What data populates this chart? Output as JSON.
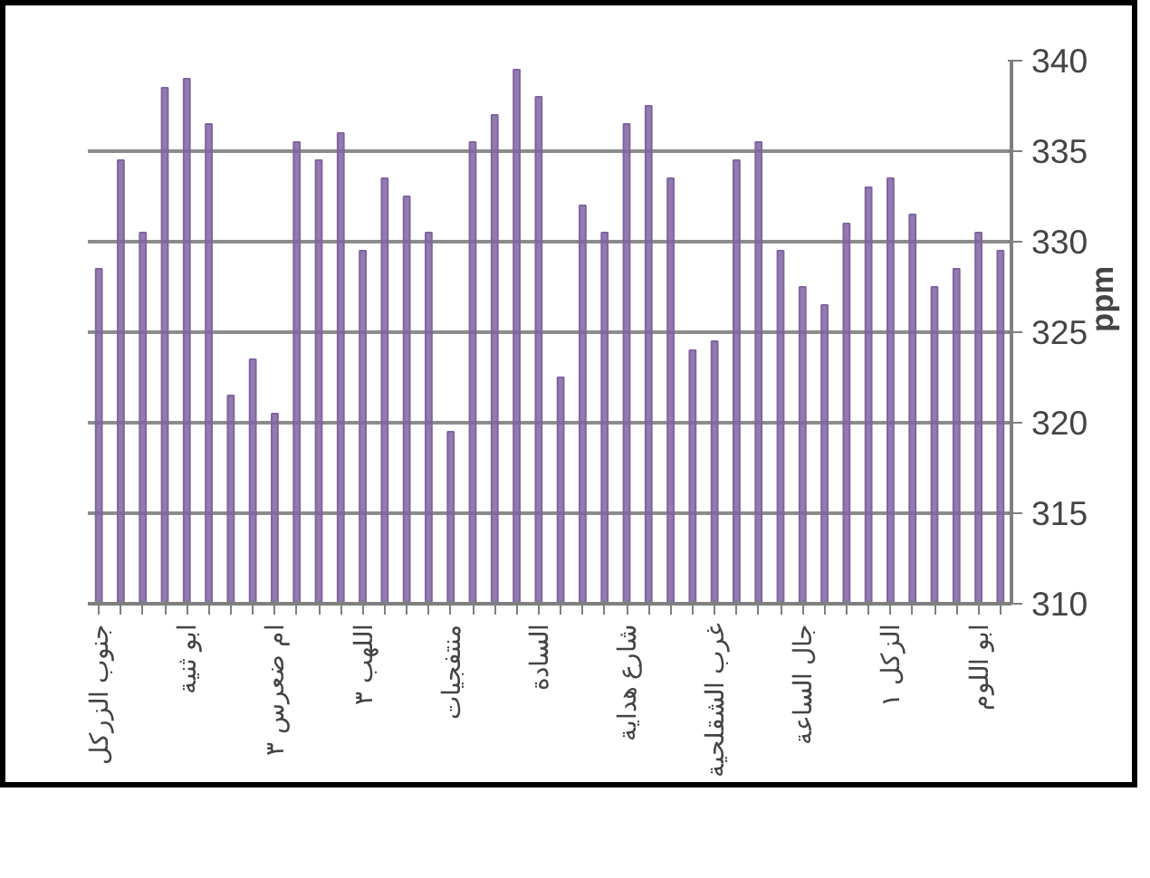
{
  "chart_data": {
    "type": "bar",
    "ylabel": "ppm",
    "categories": [
      "جنوب الزركل",
      null,
      null,
      null,
      "ابو ثنية",
      null,
      null,
      null,
      "ام ضعرس ٣",
      null,
      null,
      null,
      "اللهب ٣",
      null,
      null,
      null,
      "منتفجيات",
      null,
      null,
      null,
      "السادة",
      null,
      null,
      null,
      "شارع هداية",
      null,
      null,
      null,
      "غرب الشقلحية",
      null,
      null,
      null,
      "جال الساعة",
      null,
      null,
      null,
      "الزكل ١",
      null,
      null,
      null,
      "ابو اللوم",
      null
    ],
    "values": [
      328.5,
      334.5,
      330.5,
      338.5,
      339,
      336.5,
      321.5,
      323.5,
      320.5,
      335.5,
      334.5,
      336,
      329.5,
      333.5,
      332.5,
      330.5,
      319.5,
      335.5,
      337,
      339.5,
      338,
      322.5,
      332,
      330.5,
      336.5,
      337.5,
      333.5,
      324,
      324.5,
      334.5,
      335.5,
      329.5,
      327.5,
      326.5,
      331,
      333,
      333.5,
      331.5,
      327.5,
      328.5,
      330.5,
      329.5
    ],
    "color": "#8064a2",
    "ylim": [
      310,
      340
    ],
    "yticks": [
      310,
      315,
      320,
      325,
      330,
      335,
      340
    ],
    "grid": "y"
  }
}
